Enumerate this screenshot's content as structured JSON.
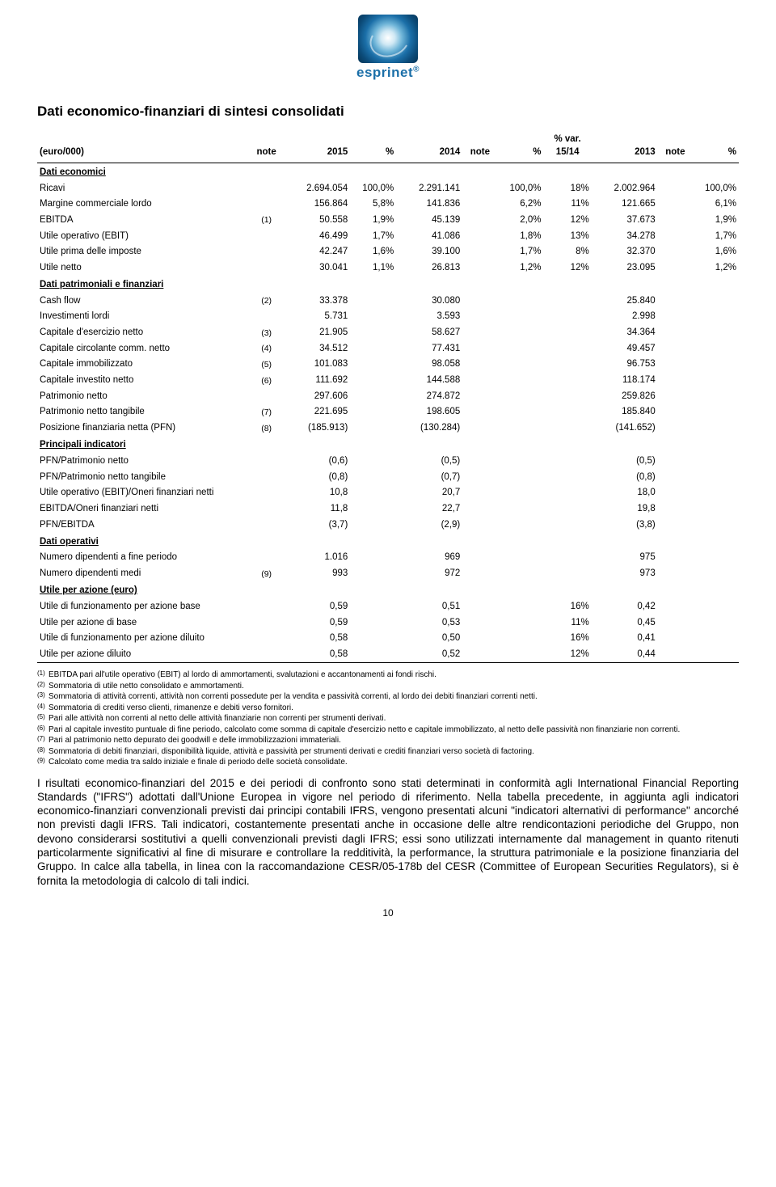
{
  "logo_brand": "esprinet",
  "title": "Dati economico-finanziari di sintesi consolidati",
  "columns": {
    "c0": "(euro/000)",
    "c1": "note",
    "c2": "2015",
    "c3": "%",
    "c4": "2014",
    "c5": "note",
    "c6": "%",
    "c7": "% var. 15/14",
    "c8": "2013",
    "c9": "note",
    "c10": "%"
  },
  "sections": [
    {
      "label": "Dati economici",
      "rows": [
        {
          "label": "Ricavi",
          "note": "",
          "v2015": "2.694.054",
          "p2015": "100,0%",
          "v2014": "2.291.141",
          "note2": "",
          "p2014": "100,0%",
          "var": "18%",
          "v2013": "2.002.964",
          "note3": "",
          "p2013": "100,0%"
        },
        {
          "label": "Margine commerciale lordo",
          "note": "",
          "v2015": "156.864",
          "p2015": "5,8%",
          "v2014": "141.836",
          "note2": "",
          "p2014": "6,2%",
          "var": "11%",
          "v2013": "121.665",
          "note3": "",
          "p2013": "6,1%"
        },
        {
          "label": "EBITDA",
          "note": "(1)",
          "v2015": "50.558",
          "p2015": "1,9%",
          "v2014": "45.139",
          "note2": "",
          "p2014": "2,0%",
          "var": "12%",
          "v2013": "37.673",
          "note3": "",
          "p2013": "1,9%"
        },
        {
          "label": "Utile operativo (EBIT)",
          "note": "",
          "v2015": "46.499",
          "p2015": "1,7%",
          "v2014": "41.086",
          "note2": "",
          "p2014": "1,8%",
          "var": "13%",
          "v2013": "34.278",
          "note3": "",
          "p2013": "1,7%"
        },
        {
          "label": "Utile prima delle imposte",
          "note": "",
          "v2015": "42.247",
          "p2015": "1,6%",
          "v2014": "39.100",
          "note2": "",
          "p2014": "1,7%",
          "var": "8%",
          "v2013": "32.370",
          "note3": "",
          "p2013": "1,6%"
        },
        {
          "label": "Utile netto",
          "note": "",
          "v2015": "30.041",
          "p2015": "1,1%",
          "v2014": "26.813",
          "note2": "",
          "p2014": "1,2%",
          "var": "12%",
          "v2013": "23.095",
          "note3": "",
          "p2013": "1,2%"
        }
      ]
    },
    {
      "label": "Dati patrimoniali e finanziari",
      "rows": [
        {
          "label": "Cash flow",
          "note": "(2)",
          "v2015": "33.378",
          "p2015": "",
          "v2014": "30.080",
          "note2": "",
          "p2014": "",
          "var": "",
          "v2013": "25.840",
          "note3": "",
          "p2013": ""
        },
        {
          "label": "Investimenti lordi",
          "note": "",
          "v2015": "5.731",
          "p2015": "",
          "v2014": "3.593",
          "note2": "",
          "p2014": "",
          "var": "",
          "v2013": "2.998",
          "note3": "",
          "p2013": ""
        },
        {
          "label": "Capitale d'esercizio netto",
          "note": "(3)",
          "v2015": "21.905",
          "p2015": "",
          "v2014": "58.627",
          "note2": "",
          "p2014": "",
          "var": "",
          "v2013": "34.364",
          "note3": "",
          "p2013": ""
        },
        {
          "label": "Capitale circolante comm. netto",
          "note": "(4)",
          "v2015": "34.512",
          "p2015": "",
          "v2014": "77.431",
          "note2": "",
          "p2014": "",
          "var": "",
          "v2013": "49.457",
          "note3": "",
          "p2013": ""
        },
        {
          "label": "Capitale immobilizzato",
          "note": "(5)",
          "v2015": "101.083",
          "p2015": "",
          "v2014": "98.058",
          "note2": "",
          "p2014": "",
          "var": "",
          "v2013": "96.753",
          "note3": "",
          "p2013": ""
        },
        {
          "label": "Capitale investito netto",
          "note": "(6)",
          "v2015": "111.692",
          "p2015": "",
          "v2014": "144.588",
          "note2": "",
          "p2014": "",
          "var": "",
          "v2013": "118.174",
          "note3": "",
          "p2013": ""
        },
        {
          "label": "Patrimonio netto",
          "note": "",
          "v2015": "297.606",
          "p2015": "",
          "v2014": "274.872",
          "note2": "",
          "p2014": "",
          "var": "",
          "v2013": "259.826",
          "note3": "",
          "p2013": ""
        },
        {
          "label": "Patrimonio netto tangibile",
          "note": "(7)",
          "v2015": "221.695",
          "p2015": "",
          "v2014": "198.605",
          "note2": "",
          "p2014": "",
          "var": "",
          "v2013": "185.840",
          "note3": "",
          "p2013": ""
        },
        {
          "label": "Posizione finanziaria netta (PFN)",
          "note": "(8)",
          "v2015": "(185.913)",
          "p2015": "",
          "v2014": "(130.284)",
          "note2": "",
          "p2014": "",
          "var": "",
          "v2013": "(141.652)",
          "note3": "",
          "p2013": ""
        }
      ]
    },
    {
      "label": "Principali indicatori",
      "rows": [
        {
          "label": "PFN/Patrimonio netto",
          "note": "",
          "v2015": "(0,6)",
          "p2015": "",
          "v2014": "(0,5)",
          "note2": "",
          "p2014": "",
          "var": "",
          "v2013": "(0,5)",
          "note3": "",
          "p2013": ""
        },
        {
          "label": "PFN/Patrimonio netto tangibile",
          "note": "",
          "v2015": "(0,8)",
          "p2015": "",
          "v2014": "(0,7)",
          "note2": "",
          "p2014": "",
          "var": "",
          "v2013": "(0,8)",
          "note3": "",
          "p2013": ""
        },
        {
          "label": "Utile operativo (EBIT)/Oneri finanziari netti",
          "note": "",
          "v2015": "10,8",
          "p2015": "",
          "v2014": "20,7",
          "note2": "",
          "p2014": "",
          "var": "",
          "v2013": "18,0",
          "note3": "",
          "p2013": ""
        },
        {
          "label": "EBITDA/Oneri finanziari netti",
          "note": "",
          "v2015": "11,8",
          "p2015": "",
          "v2014": "22,7",
          "note2": "",
          "p2014": "",
          "var": "",
          "v2013": "19,8",
          "note3": "",
          "p2013": ""
        },
        {
          "label": "PFN/EBITDA",
          "note": "",
          "v2015": "(3,7)",
          "p2015": "",
          "v2014": "(2,9)",
          "note2": "",
          "p2014": "",
          "var": "",
          "v2013": "(3,8)",
          "note3": "",
          "p2013": ""
        }
      ]
    },
    {
      "label": "Dati operativi",
      "rows": [
        {
          "label": "Numero dipendenti a fine periodo",
          "note": "",
          "v2015": "1.016",
          "p2015": "",
          "v2014": "969",
          "note2": "",
          "p2014": "",
          "var": "",
          "v2013": "975",
          "note3": "",
          "p2013": ""
        },
        {
          "label": "Numero dipendenti medi",
          "note": "(9)",
          "v2015": "993",
          "p2015": "",
          "v2014": "972",
          "note2": "",
          "p2014": "",
          "var": "",
          "v2013": "973",
          "note3": "",
          "p2013": ""
        }
      ]
    },
    {
      "label": "Utile per azione (euro)",
      "rows": [
        {
          "label": "Utile di funzionamento per azione base",
          "note": "",
          "v2015": "0,59",
          "p2015": "",
          "v2014": "0,51",
          "note2": "",
          "p2014": "",
          "var": "16%",
          "v2013": "0,42",
          "note3": "",
          "p2013": ""
        },
        {
          "label": "Utile per azione di base",
          "note": "",
          "v2015": "0,59",
          "p2015": "",
          "v2014": "0,53",
          "note2": "",
          "p2014": "",
          "var": "11%",
          "v2013": "0,45",
          "note3": "",
          "p2013": ""
        },
        {
          "label": "Utile di funzionamento per azione diluito",
          "note": "",
          "v2015": "0,58",
          "p2015": "",
          "v2014": "0,50",
          "note2": "",
          "p2014": "",
          "var": "16%",
          "v2013": "0,41",
          "note3": "",
          "p2013": ""
        },
        {
          "label": "Utile per azione diluito",
          "note": "",
          "v2015": "0,58",
          "p2015": "",
          "v2014": "0,52",
          "note2": "",
          "p2014": "",
          "var": "12%",
          "v2013": "0,44",
          "note3": "",
          "p2013": "",
          "bordered": true
        }
      ]
    }
  ],
  "footnotes": [
    {
      "n": "(1)",
      "t": "EBITDA pari all'utile operativo (EBIT) al lordo di ammortamenti, svalutazioni e accantonamenti ai fondi rischi."
    },
    {
      "n": "(2)",
      "t": "Sommatoria di utile netto consolidato e ammortamenti."
    },
    {
      "n": "(3)",
      "t": "Sommatoria di attività correnti, attività non correnti possedute per la vendita e passività correnti, al lordo dei debiti finanziari correnti netti."
    },
    {
      "n": "(4)",
      "t": "Sommatoria di crediti verso clienti, rimanenze e debiti verso fornitori."
    },
    {
      "n": "(5)",
      "t": "Pari alle attività non correnti al netto delle attività finanziarie non correnti per strumenti derivati."
    },
    {
      "n": "(6)",
      "t": "Pari al capitale investito puntuale di fine periodo, calcolato come somma di capitale d'esercizio netto e capitale immobilizzato, al netto delle passività non finanziarie non correnti."
    },
    {
      "n": "(7)",
      "t": "Pari al patrimonio netto depurato dei goodwill e delle immobilizzazioni immateriali."
    },
    {
      "n": "(8)",
      "t": "Sommatoria di debiti finanziari, disponibilità liquide, attività e passività per strumenti derivati e crediti finanziari verso società di factoring."
    },
    {
      "n": "(9)",
      "t": "Calcolato come media tra saldo iniziale e finale di periodo delle società consolidate."
    }
  ],
  "paragraph": "I risultati economico-finanziari del 2015 e dei periodi di confronto sono stati determinati in conformità agli International Financial Reporting Standards (\"IFRS\") adottati dall'Unione Europea in vigore nel periodo di riferimento.\nNella tabella precedente, in aggiunta agli indicatori economico-finanziari convenzionali previsti dai principi contabili IFRS, vengono presentati alcuni \"indicatori alternativi di performance\" ancorché non previsti dagli IFRS. Tali indicatori, costantemente presentati anche in occasione delle altre rendicontazioni periodiche del Gruppo, non devono considerarsi sostitutivi a quelli convenzionali previsti dagli IFRS; essi sono utilizzati internamente dal management in quanto ritenuti particolarmente significativi al fine di misurare e controllare la redditività, la performance, la struttura patrimoniale e la posizione finanziaria del Gruppo. In calce alla tabella, in linea con la raccomandazione CESR/05-178b del CESR (Committee of European Securities Regulators), si è fornita la metodologia di calcolo di tali indici.",
  "page_number": "10"
}
